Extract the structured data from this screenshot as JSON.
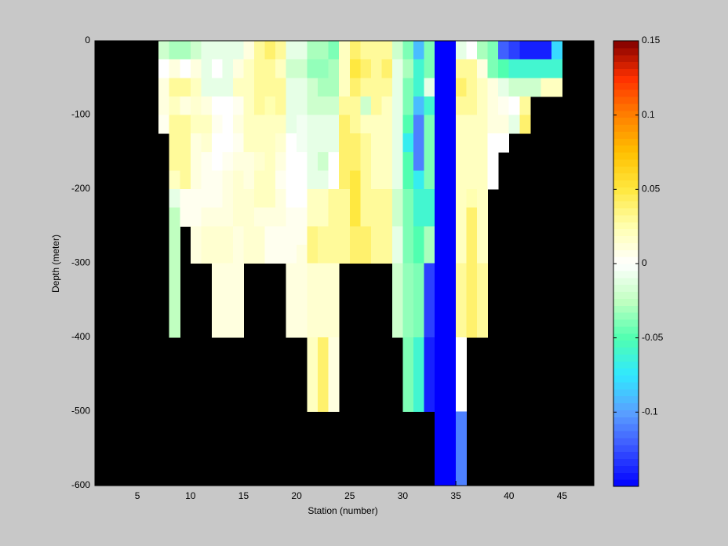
{
  "chart_data": {
    "type": "heatmap",
    "xlabel": "Station (number)",
    "ylabel": "Depth (meter)",
    "xlim": [
      1,
      48
    ],
    "ylim": [
      -600,
      0
    ],
    "xticks": [
      5,
      10,
      15,
      20,
      25,
      30,
      35,
      40,
      45
    ],
    "yticks": [
      0,
      -100,
      -200,
      -300,
      -400,
      -500,
      -600
    ],
    "clim": [
      -0.15,
      0.15
    ],
    "cticks": [
      0.15,
      0.1,
      0.05,
      0,
      -0.05,
      -0.1
    ],
    "background": "#000000",
    "colorscale": [
      [
        -0.15,
        "#0000ff"
      ],
      [
        -0.12,
        "#4060ff"
      ],
      [
        -0.1,
        "#5aa0ff"
      ],
      [
        -0.075,
        "#30e8ff"
      ],
      [
        -0.05,
        "#50ffb0"
      ],
      [
        -0.025,
        "#c0ffc0"
      ],
      [
        0,
        "#ffffff"
      ],
      [
        0.025,
        "#ffffb0"
      ],
      [
        0.05,
        "#ffe840"
      ],
      [
        0.075,
        "#ffc000"
      ],
      [
        0.1,
        "#ff8000"
      ],
      [
        0.125,
        "#ff3000"
      ],
      [
        0.15,
        "#800000"
      ]
    ],
    "x": [
      7,
      8,
      9,
      10,
      11,
      12,
      13,
      14,
      15,
      16,
      17,
      18,
      19,
      20,
      21,
      22,
      23,
      24,
      25,
      26,
      27,
      28,
      29,
      30,
      31,
      32,
      33,
      34,
      35,
      36,
      37,
      38,
      39,
      40,
      41,
      42,
      43,
      44
    ],
    "y": [
      0,
      -25,
      -50,
      -75,
      -100,
      -125,
      -150,
      -175,
      -200,
      -225,
      -250,
      -275,
      -300,
      -325,
      -350,
      -375,
      -400,
      -425,
      -450,
      -475,
      -500,
      -525,
      -550,
      -575
    ],
    "values": [
      [
        -0.02,
        0,
        0.01,
        0.01,
        0.005,
        null,
        null,
        null,
        null,
        null,
        null,
        null,
        null,
        null,
        null,
        null,
        null,
        null,
        null,
        null,
        null,
        null,
        null,
        null
      ],
      [
        -0.03,
        0.01,
        0.03,
        0.02,
        0.03,
        0.03,
        0.03,
        0.02,
        -0.01,
        -0.025,
        -0.025,
        -0.025,
        -0.025,
        -0.025,
        -0.025,
        -0.025,
        null,
        null,
        null,
        null,
        null,
        null,
        null,
        null
      ],
      [
        -0.03,
        0,
        0.03,
        0.01,
        0.03,
        0.03,
        0.03,
        0.03,
        0.005,
        0.005,
        null,
        null,
        null,
        null,
        null,
        null,
        null,
        null,
        null,
        null,
        null,
        null,
        null,
        null
      ],
      [
        -0.02,
        0.01,
        0.02,
        0.015,
        0.02,
        0.01,
        0.01,
        0.01,
        0.005,
        0.005,
        0.01,
        0.01,
        null,
        null,
        null,
        null,
        null,
        null,
        null,
        null,
        null,
        null,
        null,
        null
      ],
      [
        -0.01,
        -0.01,
        -0.01,
        0.01,
        0.02,
        0.015,
        0.005,
        0.005,
        0.005,
        0.01,
        0.015,
        0.015,
        null,
        null,
        null,
        null,
        null,
        null,
        null,
        null,
        null,
        null,
        null,
        null
      ],
      [
        -0.01,
        0,
        -0.01,
        0,
        0.005,
        0,
        0,
        0.005,
        0.005,
        0.01,
        0.015,
        0.015,
        0.01,
        0.01,
        0.01,
        0.01,
        null,
        null,
        null,
        null,
        null,
        null,
        null,
        null
      ],
      [
        -0.01,
        -0.01,
        -0.01,
        0,
        0,
        0,
        0.005,
        0.01,
        0.01,
        0.01,
        0.015,
        0.015,
        0.01,
        0.01,
        0.01,
        0.01,
        null,
        null,
        null,
        null,
        null,
        null,
        null,
        null
      ],
      [
        -0.01,
        0.01,
        0.02,
        0.005,
        0.01,
        0.005,
        0.01,
        0.015,
        0.015,
        0.015,
        0.01,
        0.01,
        0.01,
        0.01,
        0.01,
        0.01,
        null,
        null,
        null,
        null,
        null,
        null,
        null,
        null
      ],
      [
        0.01,
        0.02,
        0.02,
        0.02,
        0.02,
        0.02,
        0.01,
        0.01,
        0.015,
        0.015,
        0.015,
        0.015,
        null,
        null,
        null,
        null,
        null,
        null,
        null,
        null,
        null,
        null,
        null,
        null
      ],
      [
        0.03,
        0.03,
        0.03,
        0.03,
        0.02,
        0.02,
        0.015,
        0.02,
        0.02,
        0.01,
        0.015,
        0.015,
        null,
        null,
        null,
        null,
        null,
        null,
        null,
        null,
        null,
        null,
        null,
        null
      ],
      [
        0.04,
        0.03,
        0.03,
        0.025,
        0.02,
        0.02,
        0.02,
        0.02,
        0.02,
        0.01,
        0.005,
        0.005,
        null,
        null,
        null,
        null,
        null,
        null,
        null,
        null,
        null,
        null,
        null,
        null
      ],
      [
        0.03,
        0.02,
        0.03,
        0.03,
        0.02,
        0.015,
        0.01,
        0.005,
        0.01,
        0.01,
        0.005,
        0.005,
        null,
        null,
        null,
        null,
        null,
        null,
        null,
        null,
        null,
        null,
        null,
        null
      ],
      [
        -0.01,
        -0.02,
        -0.01,
        -0.01,
        -0.01,
        0,
        0,
        0,
        0,
        0.005,
        0.005,
        0.005,
        0.01,
        0.01,
        0.01,
        0.01,
        null,
        null,
        null,
        null,
        null,
        null,
        null,
        null
      ],
      [
        -0.01,
        -0.02,
        -0.01,
        -0.01,
        -0.005,
        -0.005,
        0,
        0,
        0,
        0.005,
        0.005,
        0.01,
        0.01,
        0.01,
        0.01,
        0.01,
        null,
        null,
        null,
        null,
        null,
        null,
        null,
        null
      ],
      [
        -0.03,
        -0.035,
        -0.02,
        -0.02,
        -0.01,
        -0.01,
        -0.01,
        -0.01,
        0.02,
        0.02,
        0.035,
        0.035,
        0.015,
        0.015,
        0.015,
        0.015,
        0.02,
        0.02,
        0.02,
        0.02,
        null,
        null,
        null,
        null
      ],
      [
        -0.03,
        -0.035,
        -0.03,
        -0.02,
        -0.01,
        -0.01,
        -0.02,
        -0.01,
        0.02,
        0.02,
        0.03,
        0.03,
        0.015,
        0.015,
        0.015,
        0.015,
        0.04,
        0.04,
        0.04,
        0.04,
        null,
        null,
        null,
        null
      ],
      [
        -0.04,
        -0.03,
        -0.03,
        -0.02,
        -0.01,
        -0.01,
        0,
        0,
        0.03,
        0.03,
        0.03,
        0.03,
        0.015,
        0.015,
        0.015,
        0.015,
        0.01,
        0.01,
        0.01,
        0.01,
        null,
        null,
        null,
        null
      ],
      [
        0.02,
        0.02,
        0.02,
        0.03,
        0.04,
        0.04,
        0.04,
        0.04,
        0.03,
        0.03,
        0.03,
        0.03,
        null,
        null,
        null,
        null,
        null,
        null,
        null,
        null,
        null,
        null,
        null,
        null
      ],
      [
        0.04,
        0.05,
        0.04,
        0.03,
        0.03,
        0.04,
        0.04,
        0.05,
        0.05,
        0.05,
        0.04,
        0.04,
        null,
        null,
        null,
        null,
        null,
        null,
        null,
        null,
        null,
        null,
        null,
        null
      ],
      [
        0.03,
        0.04,
        0.03,
        -0.02,
        0.02,
        0.03,
        0.03,
        0.03,
        0.03,
        0.03,
        0.04,
        0.04,
        null,
        null,
        null,
        null,
        null,
        null,
        null,
        null,
        null,
        null,
        null,
        null
      ],
      [
        0.03,
        0.03,
        0.03,
        0.03,
        0.02,
        0.02,
        0.02,
        0.02,
        0.03,
        0.03,
        0.03,
        0.03,
        null,
        null,
        null,
        null,
        null,
        null,
        null,
        null,
        null,
        null,
        null,
        null
      ],
      [
        0.03,
        0.04,
        0.03,
        0.02,
        0.02,
        0.02,
        0.02,
        0.02,
        0.03,
        0.03,
        0.03,
        0.03,
        null,
        null,
        null,
        null,
        null,
        null,
        null,
        null,
        null,
        null,
        null,
        null
      ],
      [
        -0.02,
        -0.01,
        -0.01,
        -0.01,
        -0.01,
        -0.01,
        -0.01,
        -0.01,
        -0.02,
        -0.02,
        -0.01,
        -0.01,
        -0.02,
        -0.02,
        -0.02,
        -0.02,
        null,
        null,
        null,
        null,
        null,
        null,
        null,
        null
      ],
      [
        -0.04,
        -0.03,
        -0.04,
        -0.04,
        -0.05,
        -0.07,
        -0.05,
        -0.05,
        -0.04,
        -0.04,
        -0.04,
        -0.04,
        -0.035,
        -0.035,
        -0.035,
        -0.035,
        -0.04,
        -0.04,
        -0.04,
        -0.04,
        null,
        null,
        null,
        null
      ],
      [
        -0.09,
        -0.06,
        -0.06,
        -0.09,
        -0.11,
        -0.11,
        -0.11,
        -0.07,
        -0.06,
        -0.06,
        -0.05,
        -0.05,
        -0.04,
        -0.04,
        -0.04,
        -0.04,
        -0.06,
        -0.06,
        -0.06,
        -0.06,
        null,
        null,
        null,
        null
      ],
      [
        -0.04,
        -0.04,
        -0.01,
        -0.06,
        -0.04,
        -0.04,
        -0.04,
        -0.04,
        -0.06,
        -0.06,
        -0.03,
        -0.03,
        -0.13,
        -0.13,
        -0.13,
        -0.13,
        -0.14,
        -0.14,
        -0.14,
        -0.14,
        null,
        null,
        null,
        null
      ],
      [
        -0.15,
        -0.15,
        -0.15,
        -0.15,
        -0.15,
        -0.15,
        -0.15,
        -0.15,
        -0.15,
        -0.15,
        -0.15,
        -0.15,
        -0.15,
        -0.15,
        -0.15,
        -0.15,
        -0.15,
        -0.15,
        -0.15,
        -0.15,
        -0.15,
        -0.15,
        -0.15,
        -0.15
      ],
      [
        -0.15,
        -0.15,
        -0.15,
        -0.15,
        -0.15,
        -0.15,
        -0.15,
        -0.15,
        -0.15,
        -0.15,
        -0.15,
        -0.15,
        -0.15,
        -0.15,
        -0.15,
        -0.15,
        -0.15,
        -0.15,
        -0.15,
        -0.15,
        -0.15,
        -0.15,
        -0.15,
        -0.15
      ],
      [
        -0.01,
        0.03,
        0.04,
        0.03,
        0.02,
        0.02,
        0.02,
        0.02,
        0.02,
        0.02,
        0.02,
        0.02,
        0.03,
        0.03,
        0.03,
        0.03,
        0,
        0,
        0,
        0,
        -0.11,
        -0.11,
        -0.11,
        -0.11
      ],
      [
        0,
        0.03,
        0.03,
        0.03,
        0.02,
        0.02,
        0.02,
        0.02,
        0.025,
        0.04,
        0.04,
        0.04,
        0.04,
        0.04,
        0.04,
        0.04,
        null,
        null,
        null,
        null,
        null,
        null,
        null,
        null
      ],
      [
        -0.03,
        0.01,
        0.02,
        0.02,
        0.02,
        0.02,
        0.02,
        0.02,
        0.02,
        0.02,
        0.02,
        0.02,
        0.03,
        0.03,
        0.03,
        0.03,
        null,
        null,
        null,
        null,
        null,
        null,
        null,
        null
      ],
      [
        -0.04,
        -0.04,
        0.01,
        0.01,
        0.01,
        0,
        0,
        0,
        null,
        null,
        null,
        null,
        null,
        null,
        null,
        null,
        null,
        null,
        null,
        null,
        null,
        null,
        null,
        null
      ],
      [
        -0.12,
        -0.05,
        -0.01,
        0.005,
        0.01,
        0,
        null,
        null,
        null,
        null,
        null,
        null,
        null,
        null,
        null,
        null,
        null,
        null,
        null,
        null,
        null,
        null,
        null,
        null
      ],
      [
        -0.13,
        -0.06,
        -0.02,
        0,
        -0.01,
        null,
        null,
        null,
        null,
        null,
        null,
        null,
        null,
        null,
        null,
        null,
        null,
        null,
        null,
        null,
        null,
        null,
        null,
        null
      ],
      [
        -0.14,
        -0.06,
        -0.02,
        0.03,
        0.04,
        null,
        null,
        null,
        null,
        null,
        null,
        null,
        null,
        null,
        null,
        null,
        null,
        null,
        null,
        null,
        null,
        null,
        null,
        null
      ],
      [
        -0.14,
        -0.06,
        -0.02,
        null,
        null,
        null,
        null,
        null,
        null,
        null,
        null,
        null,
        null,
        null,
        null,
        null,
        null,
        null,
        null,
        null,
        null,
        null,
        null,
        null
      ],
      [
        -0.14,
        -0.06,
        0.02,
        null,
        null,
        null,
        null,
        null,
        null,
        null,
        null,
        null,
        null,
        null,
        null,
        null,
        null,
        null,
        null,
        null,
        null,
        null,
        null,
        null
      ],
      [
        -0.08,
        -0.06,
        0.02,
        null,
        null,
        null,
        null,
        null,
        null,
        null,
        null,
        null,
        null,
        null,
        null,
        null,
        null,
        null,
        null,
        null,
        null,
        null,
        null,
        null
      ]
    ]
  }
}
